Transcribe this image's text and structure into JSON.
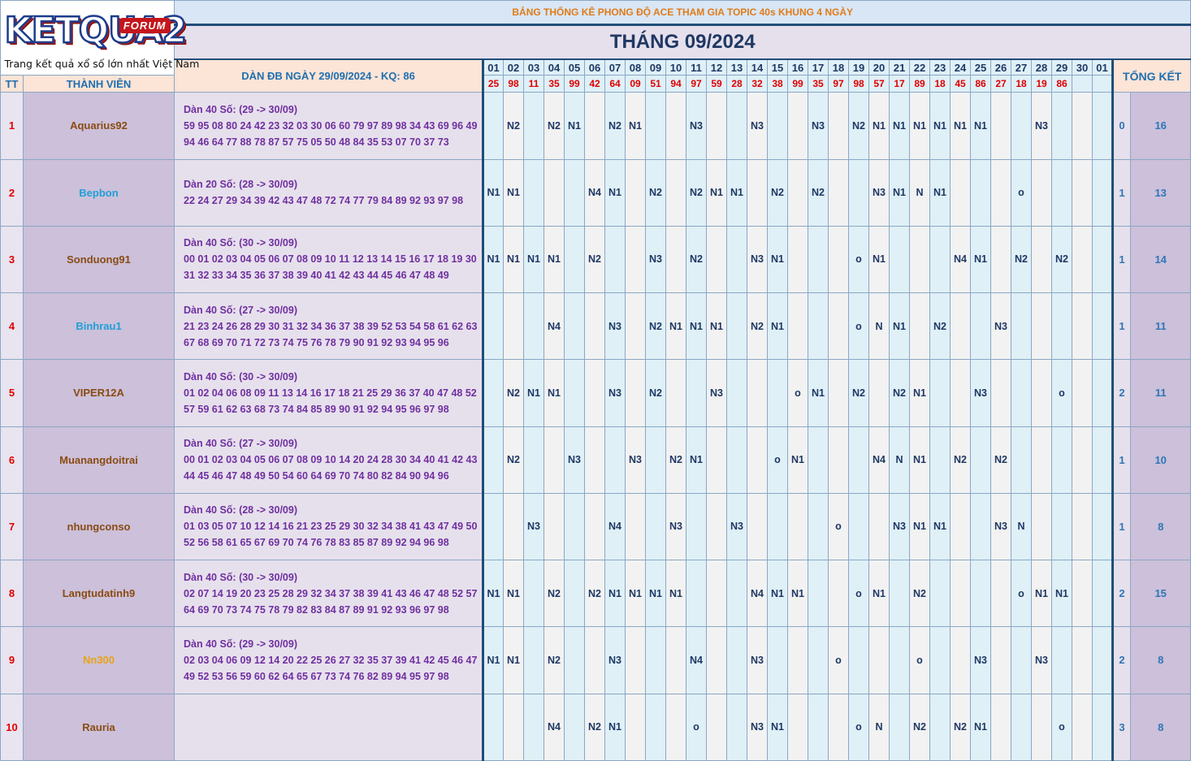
{
  "logo": {
    "word": "KETQUA2",
    "badge": "FORUM",
    "tagline": "Trang kết quả xổ số lớn nhất Việt Nam"
  },
  "title": "BẢNG THỐNG KÊ PHONG ĐỘ ACE THAM GIA TOPIC 40s KHUNG 4 NGÀY",
  "month_title": "THÁNG 09/2024",
  "headers": {
    "tt": "TT",
    "member": "THÀNH VIÊN",
    "dan": "DÀN ĐB NGÀY 29/09/2024 - KQ: 86",
    "summary": "TỔNG KẾT"
  },
  "days": [
    "01",
    "02",
    "03",
    "04",
    "05",
    "06",
    "07",
    "08",
    "09",
    "10",
    "11",
    "12",
    "13",
    "14",
    "15",
    "16",
    "17",
    "18",
    "19",
    "20",
    "21",
    "22",
    "23",
    "24",
    "25",
    "26",
    "27",
    "28",
    "29",
    "30",
    "01"
  ],
  "results": [
    "25",
    "98",
    "11",
    "35",
    "99",
    "42",
    "64",
    "09",
    "51",
    "94",
    "97",
    "59",
    "28",
    "32",
    "38",
    "99",
    "35",
    "97",
    "98",
    "57",
    "17",
    "89",
    "18",
    "45",
    "86",
    "27",
    "18",
    "19",
    "86",
    "",
    ""
  ],
  "colors": {
    "brown": "#8a4b12",
    "blue": "#1f9fd6",
    "orange": "#e8a317"
  },
  "rows": [
    {
      "tt": "1",
      "name": "Aquarius92",
      "color": "brown",
      "dan": [
        "Dàn 40 Số: (29 -> 30/09)",
        "59 95 08 80 24 42 23 32 03 30 06 60 79 97 89 98 34 43 69 96 49",
        "94 46 64 77 88 78 87 57 75 05 50 48 84 35 53 07 70 37 73"
      ],
      "cells": [
        "",
        "N2",
        "",
        "N2",
        "N1",
        "",
        "N2",
        "N1",
        "",
        "",
        "N3",
        "",
        "",
        "N3",
        "",
        "",
        "N3",
        "",
        "N2",
        "N1",
        "N1",
        "N1",
        "N1",
        "N1",
        "N1",
        "",
        "",
        "N3",
        "",
        "",
        ""
      ],
      "sum_a": "0",
      "sum_b": "16"
    },
    {
      "tt": "2",
      "name": "Bepbon",
      "color": "blue",
      "dan": [
        "Dàn 20 Số: (28 -> 30/09)",
        "22 24 27 29 34 39 42 43 47 48 72 74 77 79 84 89 92 93 97 98"
      ],
      "cells": [
        "N1",
        "N1",
        "",
        "",
        "",
        "N4",
        "N1",
        "",
        "N2",
        "",
        "N2",
        "N1",
        "N1",
        "",
        "N2",
        "",
        "N2",
        "",
        "",
        "N3",
        "N1",
        "N",
        "N1",
        "",
        "",
        "",
        "o",
        "",
        "",
        "",
        ""
      ],
      "sum_a": "1",
      "sum_b": "13"
    },
    {
      "tt": "3",
      "name": "Sonduong91",
      "color": "brown",
      "dan": [
        "Dàn 40 Số: (30 -> 30/09)",
        "00 01 02 03 04 05 06 07 08 09 10 11 12 13 14 15 16 17 18 19 30",
        "31 32 33 34 35 36 37 38 39 40 41 42 43 44 45 46 47 48 49"
      ],
      "cells": [
        "N1",
        "N1",
        "N1",
        "N1",
        "",
        "N2",
        "",
        "",
        "N3",
        "",
        "N2",
        "",
        "",
        "N3",
        "N1",
        "",
        "",
        "",
        "o",
        "N1",
        "",
        "",
        "",
        "N4",
        "N1",
        "",
        "N2",
        "",
        "N2",
        "",
        ""
      ],
      "sum_a": "1",
      "sum_b": "14"
    },
    {
      "tt": "4",
      "name": "Binhrau1",
      "color": "blue",
      "dan": [
        "Dàn 40 Số: (27 -> 30/09)",
        "21 23 24 26 28 29 30 31 32 34 36 37 38 39 52 53 54 58 61 62 63",
        "67 68 69 70 71 72 73 74 75 76 78 79 90 91 92 93 94 95 96"
      ],
      "cells": [
        "",
        "",
        "",
        "N4",
        "",
        "",
        "N3",
        "",
        "N2",
        "N1",
        "N1",
        "N1",
        "",
        "N2",
        "N1",
        "",
        "",
        "",
        "o",
        "N",
        "N1",
        "",
        "N2",
        "",
        "",
        "N3",
        "",
        "",
        "",
        "",
        ""
      ],
      "sum_a": "1",
      "sum_b": "11"
    },
    {
      "tt": "5",
      "name": "VIPER12A",
      "color": "brown",
      "dan": [
        "Dàn 40 Số: (30 -> 30/09)",
        "01 02 04 06 08 09 11 13 14 16 17 18 21 25 29 36 37 40 47 48 52",
        "57 59 61 62 63 68 73 74 84 85 89 90 91 92 94 95 96 97 98"
      ],
      "cells": [
        "",
        "N2",
        "N1",
        "N1",
        "",
        "",
        "N3",
        "",
        "N2",
        "",
        "",
        "N3",
        "",
        "",
        "",
        "o",
        "N1",
        "",
        "N2",
        "",
        "N2",
        "N1",
        "",
        "",
        "N3",
        "",
        "",
        "",
        "o",
        "",
        ""
      ],
      "sum_a": "2",
      "sum_b": "11"
    },
    {
      "tt": "6",
      "name": "Muanangdoitrai",
      "color": "brown",
      "dan": [
        "Dàn 40 Số: (27 -> 30/09)",
        "00 01 02 03 04 05 06 07 08 09 10 14 20 24 28 30 34 40 41 42 43",
        "44 45 46 47 48 49 50 54 60 64 69 70 74 80 82 84 90 94 96"
      ],
      "cells": [
        "",
        "N2",
        "",
        "",
        "N3",
        "",
        "",
        "N3",
        "",
        "N2",
        "N1",
        "",
        "",
        "",
        "o",
        "N1",
        "",
        "",
        "",
        "N4",
        "N",
        "N1",
        "",
        "N2",
        "",
        "N2",
        "",
        "",
        "",
        "",
        ""
      ],
      "sum_a": "1",
      "sum_b": "10"
    },
    {
      "tt": "7",
      "name": "nhungconso",
      "color": "brown",
      "dan": [
        "Dàn 40 Số: (28 -> 30/09)",
        "01 03 05 07 10 12 14 16 21 23 25 29 30 32 34 38 41 43 47 49 50",
        "52 56 58 61 65 67 69 70 74 76 78 83 85 87 89 92 94 96 98"
      ],
      "cells": [
        "",
        "",
        "N3",
        "",
        "",
        "",
        "N4",
        "",
        "",
        "N3",
        "",
        "",
        "N3",
        "",
        "",
        "",
        "",
        "o",
        "",
        "",
        "N3",
        "N1",
        "N1",
        "",
        "",
        "N3",
        "N",
        "",
        "",
        "",
        ""
      ],
      "sum_a": "1",
      "sum_b": "8"
    },
    {
      "tt": "8",
      "name": "Langtudatinh9",
      "color": "brown",
      "dan": [
        "Dàn 40 Số: (30 -> 30/09)",
        "02 07 14 19 20 23 25 28 29 32 34 37 38 39 41 43 46 47 48 52 57",
        "64 69 70 73 74 75 78 79 82 83 84 87 89 91 92 93 96 97 98"
      ],
      "cells": [
        "N1",
        "N1",
        "",
        "N2",
        "",
        "N2",
        "N1",
        "N1",
        "N1",
        "N1",
        "",
        "",
        "",
        "N4",
        "N1",
        "N1",
        "",
        "",
        "o",
        "N1",
        "",
        "N2",
        "",
        "",
        "",
        "",
        "o",
        "N1",
        "N1",
        "",
        ""
      ],
      "sum_a": "2",
      "sum_b": "15"
    },
    {
      "tt": "9",
      "name": "Nn300",
      "color": "orange",
      "dan": [
        "Dàn 40 Số: (29 -> 30/09)",
        "02 03 04 06 09 12 14 20 22 25 26 27 32 35 37 39 41 42 45 46 47",
        "49 52 53 56 59 60 62 64 65 67 73 74 76 82 89 94 95 97 98"
      ],
      "cells": [
        "N1",
        "N1",
        "",
        "N2",
        "",
        "",
        "N3",
        "",
        "",
        "",
        "N4",
        "",
        "",
        "N3",
        "",
        "",
        "",
        "o",
        "",
        "",
        "",
        "o",
        "",
        "",
        "N3",
        "",
        "",
        "N3",
        "",
        "",
        ""
      ],
      "sum_a": "2",
      "sum_b": "8"
    },
    {
      "tt": "10",
      "name": "Rauria",
      "color": "brown",
      "dan": [],
      "cells": [
        "",
        "",
        "",
        "N4",
        "",
        "N2",
        "N1",
        "",
        "",
        "",
        "o",
        "",
        "",
        "N3",
        "N1",
        "",
        "",
        "",
        "o",
        "N",
        "",
        "N2",
        "",
        "N2",
        "N1",
        "",
        "",
        "",
        "o",
        "",
        ""
      ],
      "sum_a": "3",
      "sum_b": "8"
    }
  ]
}
